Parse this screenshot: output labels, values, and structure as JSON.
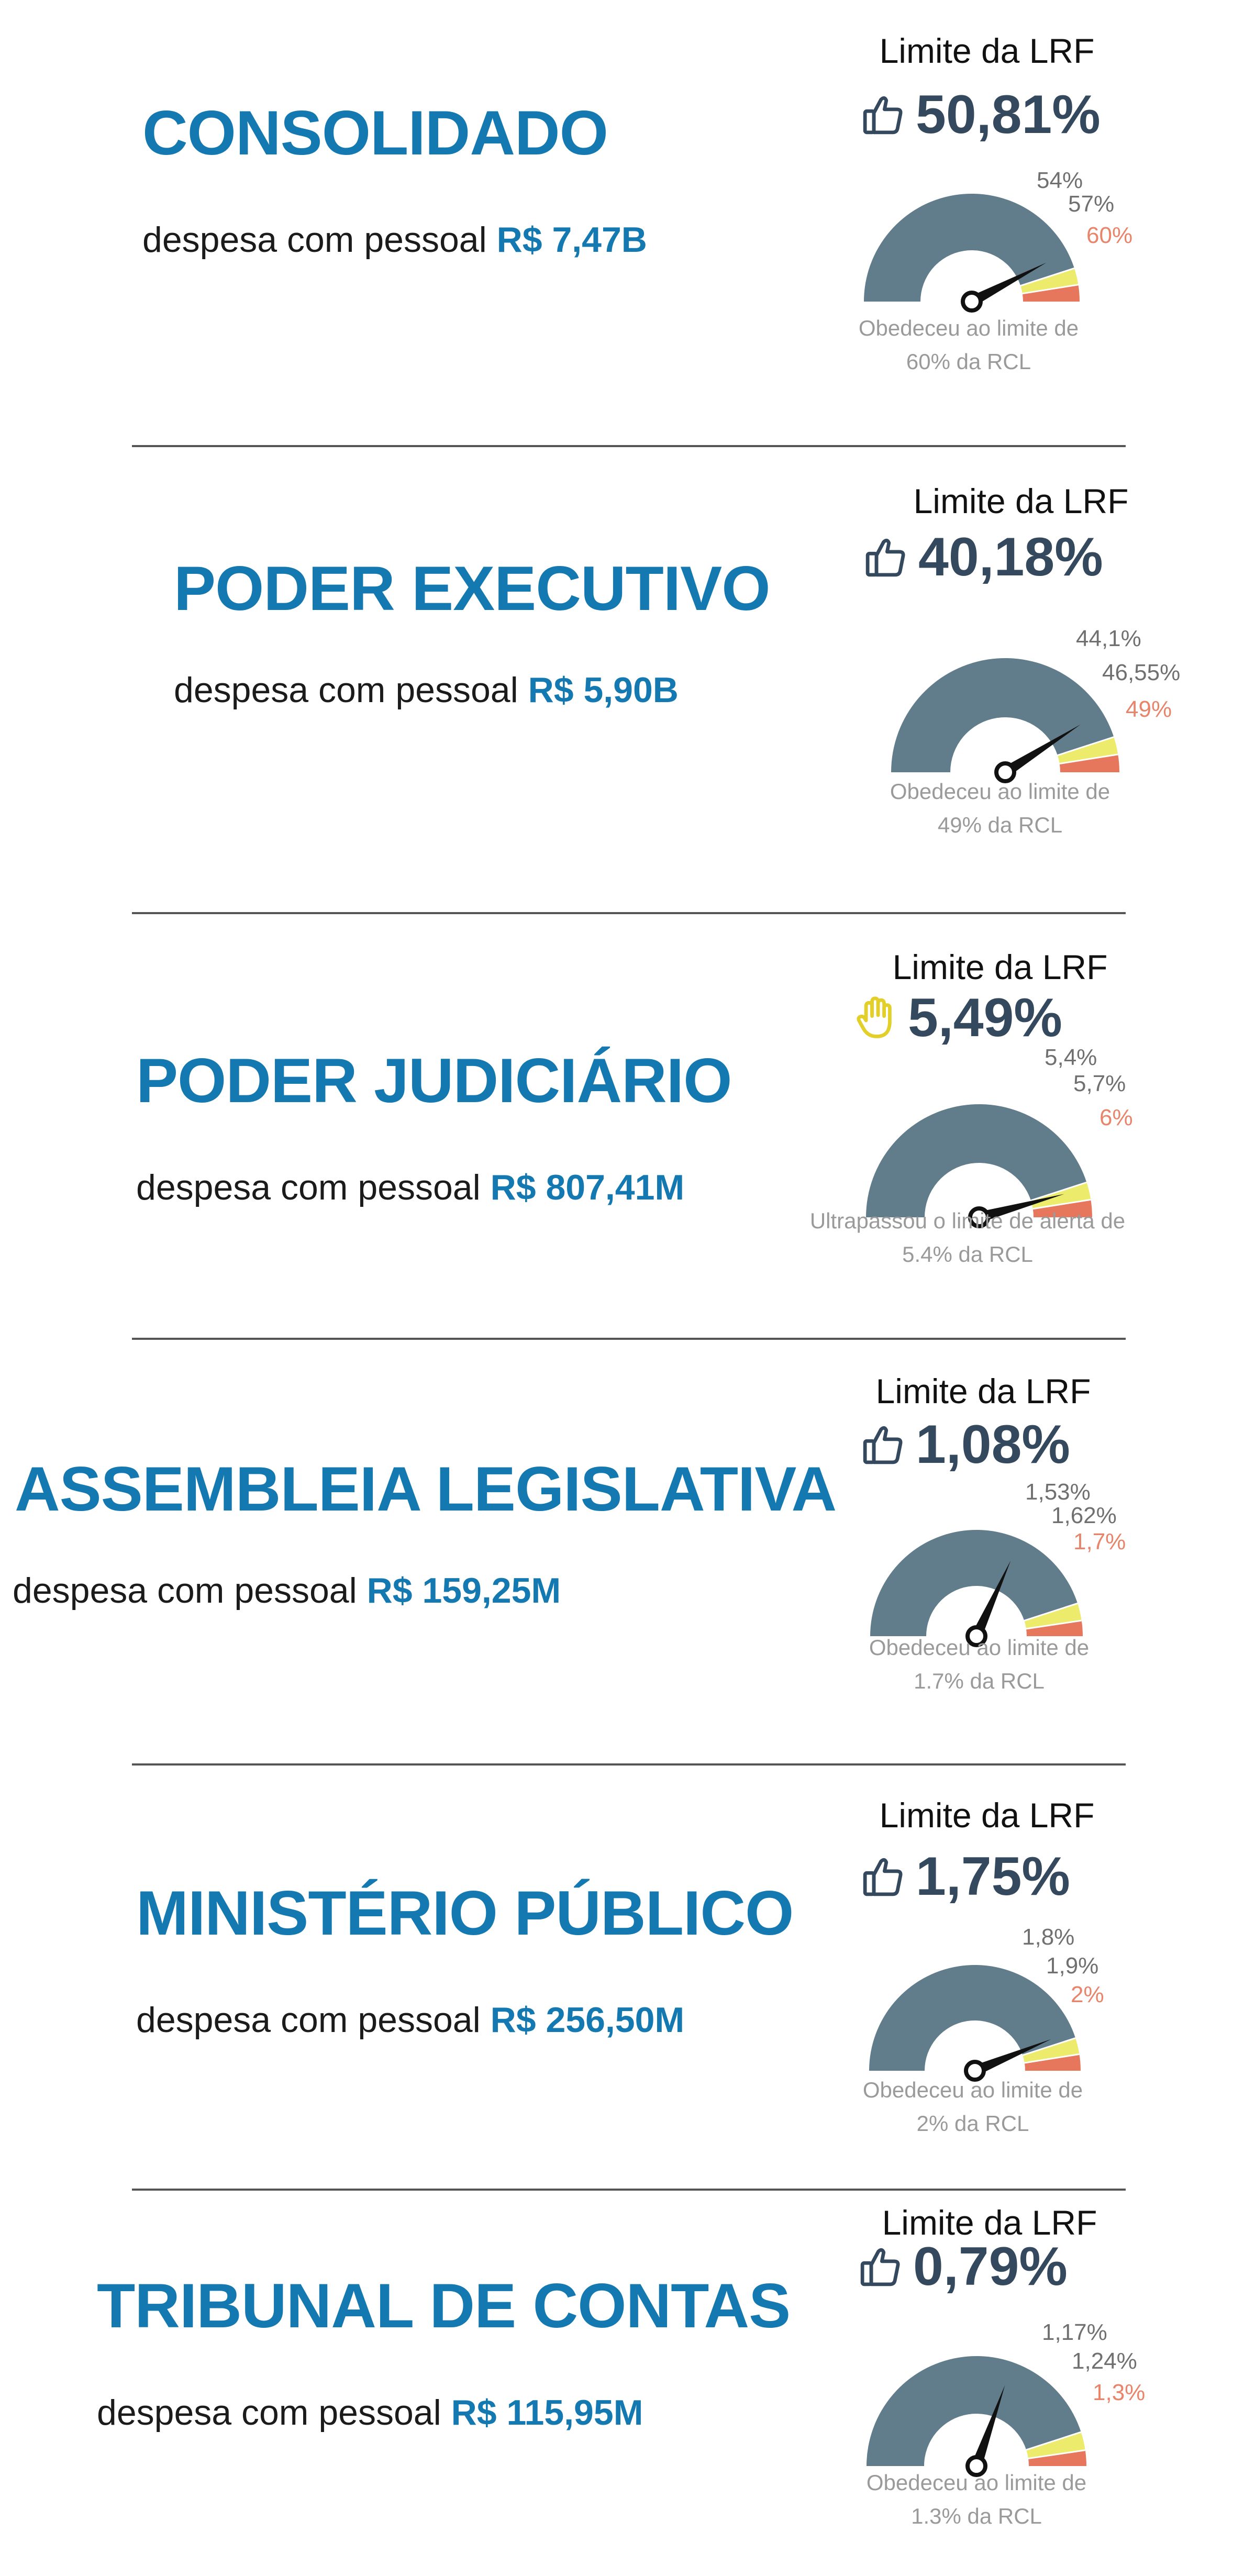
{
  "common": {
    "limit_title": "Limite da LRF",
    "expense_label": "despesa com pessoal"
  },
  "colors": {
    "title": "#1478b1",
    "gauge_value": "#617c8b",
    "gauge_alert": "#eceb6b",
    "gauge_prudential": "#f0a54c",
    "gauge_limit": "#e6775c",
    "needle": "#111111",
    "thumbs_icon": "#34495e",
    "hand_icon": "#e3cf2a"
  },
  "sections": [
    {
      "title": "CONSOLIDADO",
      "expense_amount": "R$ 7,47B",
      "percent": "50,81%",
      "status_icon": "thumbs-up-icon",
      "tick_labels": [
        "54%",
        "57%",
        "60%"
      ],
      "caption": [
        "Obedeceu ao limite de",
        "60% da RCL"
      ]
    },
    {
      "title": "PODER EXECUTIVO",
      "expense_amount": "R$ 5,90B",
      "percent": "40,18%",
      "status_icon": "thumbs-up-icon",
      "tick_labels": [
        "44,1%",
        "46,55%",
        "49%"
      ],
      "caption": [
        "Obedeceu ao limite de",
        "49% da RCL"
      ]
    },
    {
      "title": "PODER JUDICIÁRIO",
      "expense_amount": "R$ 807,41M",
      "percent": "5,49%",
      "status_icon": "raised-hand-icon",
      "tick_labels": [
        "5,4%",
        "5,7%",
        "6%"
      ],
      "caption": [
        "Ultrapassou o limite de alerta de",
        "5.4% da RCL"
      ]
    },
    {
      "title": "ASSEMBLEIA LEGISLATIVA",
      "expense_amount": "R$ 159,25M",
      "percent": "1,08%",
      "status_icon": "thumbs-up-icon",
      "tick_labels": [
        "1,53%",
        "1,62%",
        "1,7%"
      ],
      "caption": [
        "Obedeceu ao limite de",
        "1.7% da RCL"
      ]
    },
    {
      "title": "MINISTÉRIO PÚBLICO",
      "expense_amount": "R$ 256,50M",
      "percent": "1,75%",
      "status_icon": "thumbs-up-icon",
      "tick_labels": [
        "1,8%",
        "1,9%",
        "2%"
      ],
      "caption": [
        "Obedeceu ao limite de",
        "2% da RCL"
      ]
    },
    {
      "title": "TRIBUNAL DE CONTAS",
      "expense_amount": "R$ 115,95M",
      "percent": "0,79%",
      "status_icon": "thumbs-up-icon",
      "tick_labels": [
        "1,17%",
        "1,24%",
        "1,3%"
      ],
      "caption": [
        "Obedeceu ao limite de",
        "1.3% da RCL"
      ]
    }
  ],
  "chart_data": [
    {
      "type": "gauge",
      "title": "CONSOLIDADO",
      "value": 50.81,
      "min": 0,
      "max": 60,
      "alert": 54,
      "prudential": 57,
      "limit": 60
    },
    {
      "type": "gauge",
      "title": "PODER EXECUTIVO",
      "value": 40.18,
      "min": 0,
      "max": 49,
      "alert": 44.1,
      "prudential": 46.55,
      "limit": 49
    },
    {
      "type": "gauge",
      "title": "PODER JUDICIÁRIO",
      "value": 5.49,
      "min": 0,
      "max": 6,
      "alert": 5.4,
      "prudential": 5.7,
      "limit": 6
    },
    {
      "type": "gauge",
      "title": "ASSEMBLEIA LEGISLATIVA",
      "value": 1.08,
      "min": 0,
      "max": 1.7,
      "alert": 1.53,
      "prudential": 1.62,
      "limit": 1.7
    },
    {
      "type": "gauge",
      "title": "MINISTÉRIO PÚBLICO",
      "value": 1.75,
      "min": 0,
      "max": 2,
      "alert": 1.8,
      "prudential": 1.9,
      "limit": 2
    },
    {
      "type": "gauge",
      "title": "TRIBUNAL DE CONTAS",
      "value": 0.79,
      "min": 0,
      "max": 1.3,
      "alert": 1.17,
      "prudential": 1.24,
      "limit": 1.3
    }
  ]
}
